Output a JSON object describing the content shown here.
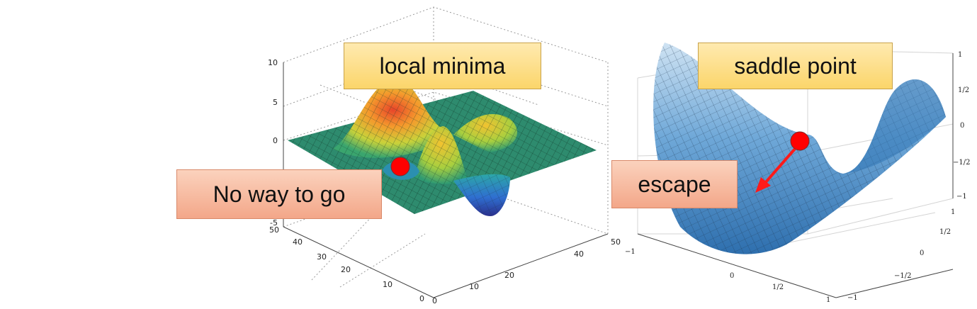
{
  "left_plot": {
    "z_ticks": [
      "10",
      "5",
      "0",
      "-5"
    ],
    "y_ticks": [
      "50",
      "40",
      "30",
      "20",
      "10",
      "0"
    ],
    "x_ticks": [
      "0",
      "10",
      "20",
      "40",
      "50"
    ],
    "marker_color": "#ff0000",
    "floor_color": "#2e8b6e"
  },
  "right_plot": {
    "z_ticks": [
      "1",
      "1/2",
      "0",
      "−1/2",
      "−1"
    ],
    "y_ticks": [
      "1",
      "1/2",
      "0",
      "−1/2",
      "−1"
    ],
    "x_ticks": [
      "−1",
      "0",
      "1/2",
      "1"
    ],
    "marker_color": "#ff0000",
    "surface_color": "#4a90c8"
  },
  "callouts": {
    "local_minima": "local minima",
    "no_way": "No way to go",
    "saddle_point": "saddle point",
    "escape": "escape"
  }
}
